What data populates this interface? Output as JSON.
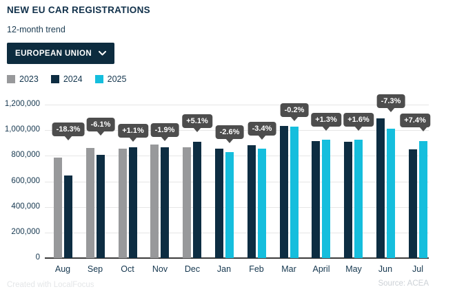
{
  "header": {
    "title": "NEW EU CAR REGISTRATIONS",
    "subtitle": "12-month trend"
  },
  "filter": {
    "label": "EUROPEAN UNION",
    "icon": "chevron-down"
  },
  "legend": [
    {
      "label": "2023",
      "color": "#98999b"
    },
    {
      "label": "2024",
      "color": "#0d2d42"
    },
    {
      "label": "2025",
      "color": "#15bedd"
    }
  ],
  "footer": {
    "left": "Created with LocalFocus",
    "right": "Source: ACEA"
  },
  "chart_data": {
    "type": "bar",
    "title": "NEW EU CAR REGISTRATIONS",
    "categories": [
      "Aug",
      "Sep",
      "Oct",
      "Nov",
      "Dec",
      "Jan",
      "Feb",
      "Mar",
      "April",
      "May",
      "Jun",
      "Jul"
    ],
    "series": [
      {
        "name": "2023",
        "color": "#98999b",
        "values": [
          788000,
          861000,
          855000,
          886000,
          867000,
          null,
          null,
          null,
          null,
          null,
          null,
          null
        ]
      },
      {
        "name": "2024",
        "color": "#0d2d42",
        "values": [
          644000,
          809000,
          864000,
          869000,
          911000,
          853000,
          884000,
          1031000,
          913000,
          912000,
          1090000,
          852000
        ]
      },
      {
        "name": "2025",
        "color": "#15bedd",
        "values": [
          null,
          null,
          null,
          null,
          null,
          831000,
          854000,
          1029000,
          925000,
          927000,
          1011000,
          915000
        ]
      }
    ],
    "labels": [
      "-18.3%",
      "-6.1%",
      "+1.1%",
      "-1.9%",
      "+5.1%",
      "-2.6%",
      "-3.4%",
      "-0.2%",
      "+1.3%",
      "+1.6%",
      "-7.3%",
      "+7.4%"
    ],
    "label_style": {
      "bg": "#4d4d4d",
      "text": "#ffffff"
    },
    "ylim": [
      0,
      1200000
    ],
    "ytick_step": 200000,
    "yticks": [
      "0",
      "200,000",
      "400,000",
      "600,000",
      "800,000",
      "1,000,000",
      "1,200,000"
    ],
    "grid": true,
    "legend_position": "top",
    "layout_hints": {
      "tooltip_dy": [
        -14,
        -7,
        3,
        6,
        -3,
        3,
        3,
        4,
        -2,
        -2,
        2,
        -3
      ],
      "tooltip_dx": [
        0,
        0,
        0,
        0,
        0,
        0,
        0,
        0,
        0,
        0,
        0,
        -12
      ]
    }
  }
}
